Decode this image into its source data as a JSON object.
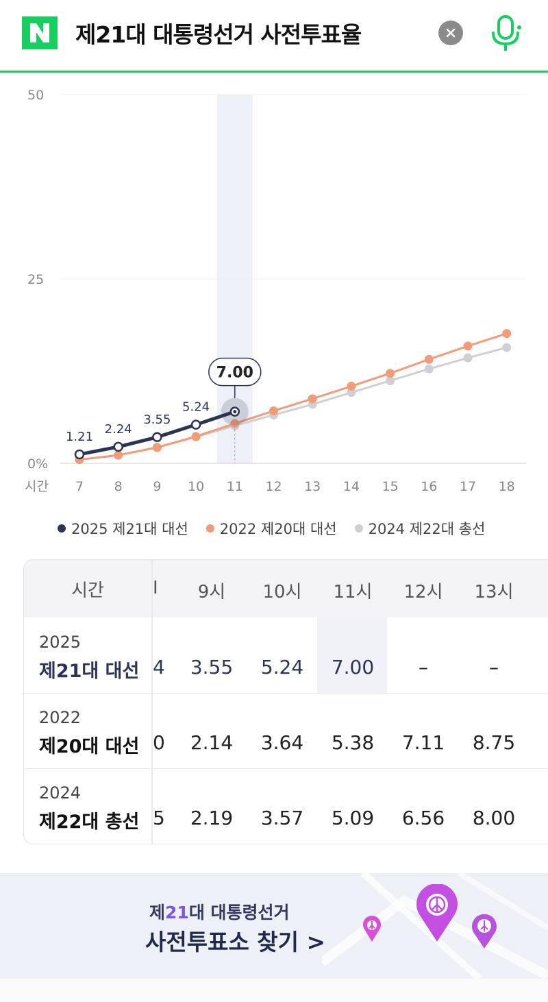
{
  "header": {
    "query": "제21대 대통령선거 사전투표율",
    "logo_icon": "naver-n-logo",
    "clear_icon": "close-icon",
    "mic_icon": "microphone-icon",
    "brand_color": "#19ce60"
  },
  "chart_data": {
    "type": "line",
    "ylim": [
      0,
      50
    ],
    "y_ticks": [
      "50",
      "25",
      "0%"
    ],
    "xlabel": "시간",
    "categories": [
      "7",
      "8",
      "9",
      "10",
      "11",
      "12",
      "13",
      "14",
      "15",
      "16",
      "17",
      "18"
    ],
    "highlight_index": 4,
    "tooltip": "7.00",
    "grid": true,
    "series": [
      {
        "name": "2025 제21대 대선",
        "color": "#2b3553",
        "values": [
          1.21,
          2.24,
          3.55,
          5.24,
          7.0,
          null,
          null,
          null,
          null,
          null,
          null,
          null
        ],
        "labels": [
          "1.21",
          "2.24",
          "3.55",
          "5.24"
        ]
      },
      {
        "name": "2022 제20대 대선",
        "color": "#f29b77",
        "values": [
          0.5,
          1.1,
          2.14,
          3.64,
          5.38,
          7.11,
          8.75,
          10.45,
          12.2,
          14.1,
          15.9,
          17.6
        ]
      },
      {
        "name": "2024 제22대 총선",
        "color": "#cfcfd4",
        "values": [
          0.5,
          1.1,
          2.19,
          3.57,
          5.09,
          6.56,
          8.0,
          9.6,
          11.2,
          12.8,
          14.3,
          15.7
        ]
      }
    ]
  },
  "table": {
    "header_label": "시간",
    "columns": [
      "I",
      "9시",
      "10시",
      "11시",
      "12시",
      "13시"
    ],
    "rows": [
      {
        "year": "2025",
        "name": "제21대 대선",
        "cells": [
          "4",
          "3.55",
          "5.24",
          "7.00",
          "–",
          "–"
        ]
      },
      {
        "year": "2022",
        "name": "제20대 대선",
        "cells": [
          "0",
          "2.14",
          "3.64",
          "5.38",
          "7.11",
          "8.75"
        ]
      },
      {
        "year": "2024",
        "name": "제22대 총선",
        "cells": [
          "5",
          "2.19",
          "3.57",
          "5.09",
          "6.56",
          "8.00"
        ]
      }
    ]
  },
  "banner": {
    "title_prefix": "제",
    "title_number": "21",
    "title_suffix": "대 대통령선거",
    "subtitle": "사전투표소 찾기 >",
    "pin_icon": "map-pin-icon"
  }
}
